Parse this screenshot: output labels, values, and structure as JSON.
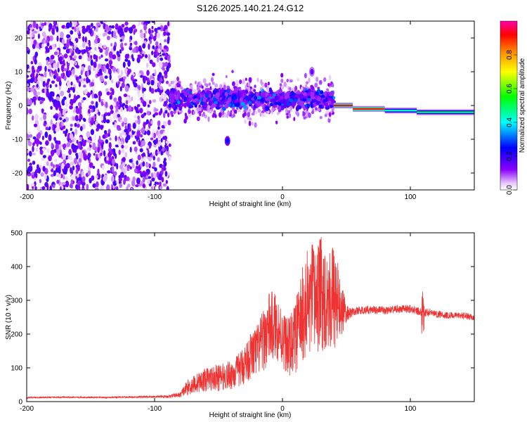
{
  "title": "S126.2025.140.21.24.G12",
  "chart_data": [
    {
      "type": "heatmap",
      "xlabel": "Height of straight line (km)",
      "ylabel": "Frequency (Hz)",
      "xlim": [
        -200,
        150
      ],
      "ylim": [
        -25,
        25
      ],
      "x_ticks": [
        -200,
        -100,
        0,
        100
      ],
      "y_ticks": [
        -20,
        -10,
        0,
        10,
        20
      ],
      "colorbar": {
        "label": "Normalized spectral amplitude",
        "range": [
          0,
          1
        ],
        "ticks": [
          "0.0",
          "0.2",
          "0.4",
          "0.6",
          "0.8"
        ]
      },
      "regions": [
        {
          "x_from": -200,
          "x_to": -88,
          "pattern": "broadband noise",
          "amplitude_range": [
            0.05,
            0.2
          ],
          "freq_range": [
            -25,
            25
          ]
        },
        {
          "x_from": -88,
          "x_to": 40,
          "pattern": "scattered band",
          "center_freq": 2,
          "spread": 3,
          "amplitude_range": [
            0.1,
            0.35
          ]
        },
        {
          "x_from": 40,
          "x_to": 55,
          "pattern": "narrow line",
          "center_freq": 0,
          "amplitude": 0.95
        },
        {
          "x_from": 55,
          "x_to": 80,
          "pattern": "narrow line",
          "center_freq": -1,
          "amplitude": 0.9
        },
        {
          "x_from": 80,
          "x_to": 105,
          "pattern": "narrow line",
          "center_freq": -1.5,
          "amplitude": 0.45
        },
        {
          "x_from": 105,
          "x_to": 150,
          "pattern": "narrow line",
          "center_freq": -2,
          "amplitude": 0.5
        }
      ],
      "features": [
        {
          "x": -43,
          "freq": -10.5,
          "amplitude": 0.25
        },
        {
          "x": 23,
          "freq": 10,
          "amplitude": 0.15
        }
      ]
    },
    {
      "type": "line",
      "xlabel": "Height of straight line (km)",
      "ylabel": "SNR (10 * v/v)",
      "xlim": [
        -200,
        150
      ],
      "ylim": [
        0,
        500
      ],
      "x_ticks": [
        -200,
        -100,
        0,
        100
      ],
      "y_ticks": [
        0,
        100,
        200,
        300,
        400,
        500
      ],
      "series": [
        {
          "color": "#ee3333",
          "x": [
            -200,
            -170,
            -140,
            -110,
            -90,
            -80,
            -75,
            -70,
            -65,
            -60,
            -55,
            -50,
            -45,
            -40,
            -35,
            -30,
            -25,
            -20,
            -15,
            -10,
            -5,
            0,
            5,
            10,
            15,
            20,
            25,
            30,
            35,
            40,
            45,
            50,
            55,
            60,
            70,
            80,
            90,
            100,
            105,
            110,
            115,
            120,
            130,
            140,
            150
          ],
          "y": [
            12,
            13,
            12,
            14,
            15,
            20,
            40,
            50,
            58,
            65,
            70,
            70,
            75,
            80,
            90,
            110,
            135,
            150,
            180,
            220,
            225,
            190,
            160,
            190,
            250,
            290,
            300,
            320,
            310,
            310,
            280,
            260,
            265,
            270,
            272,
            270,
            273,
            275,
            270,
            262,
            265,
            260,
            255,
            255,
            250
          ],
          "noise": [
            2,
            2,
            2,
            3,
            4,
            8,
            22,
            28,
            30,
            35,
            38,
            40,
            40,
            45,
            50,
            60,
            70,
            80,
            90,
            110,
            100,
            90,
            85,
            110,
            140,
            170,
            180,
            170,
            160,
            160,
            100,
            25,
            12,
            12,
            12,
            12,
            12,
            12,
            12,
            12,
            12,
            12,
            10,
            10,
            10
          ]
        }
      ]
    }
  ],
  "colors": {
    "line": "#ee3333",
    "colormap": [
      "#ffffff",
      "#8a00ff",
      "#0000ff",
      "#00ffff",
      "#00ff00",
      "#ffff00",
      "#ff8800",
      "#ff0000",
      "#ff00aa"
    ]
  }
}
